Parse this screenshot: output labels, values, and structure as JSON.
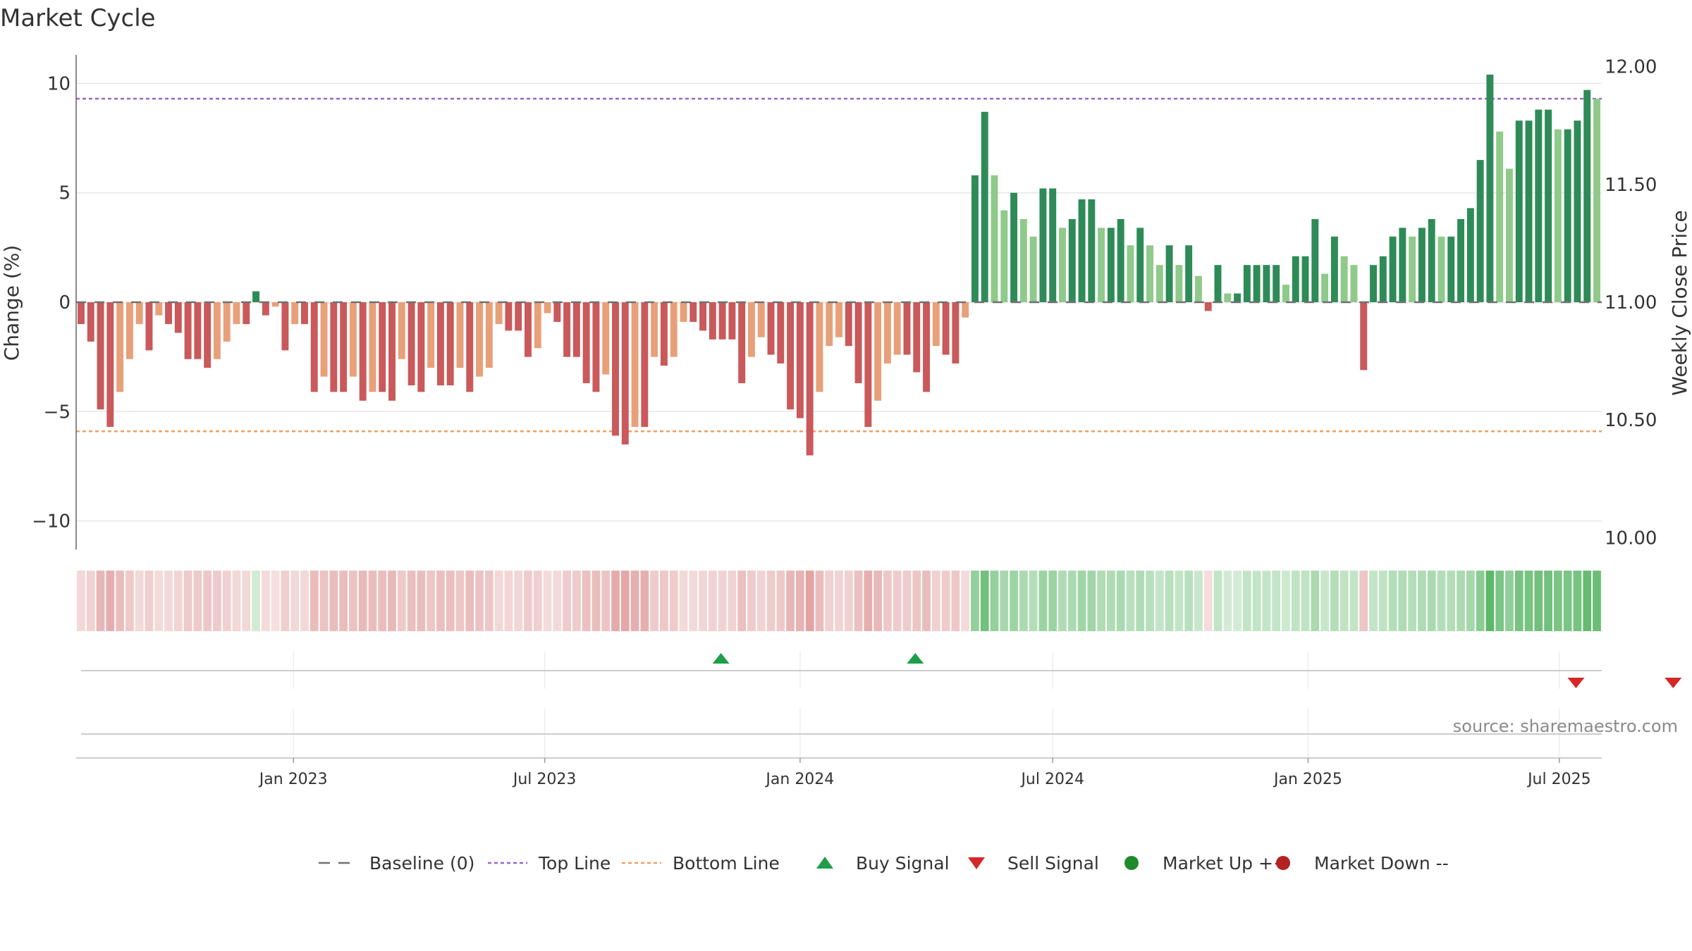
{
  "chart_data": {
    "type": "bar",
    "title": "Market Cycle",
    "ylabel": "Change (%)",
    "y2label": "Weekly Close Price",
    "ylim": [
      -11.3,
      11.3
    ],
    "y2lim": [
      9.95,
      12.05
    ],
    "y_ticks": [
      10,
      5,
      0,
      -5,
      -10
    ],
    "y_tick_labels": [
      "10",
      "5",
      "0",
      "−5",
      "−10"
    ],
    "y2_ticks": [
      12.0,
      11.5,
      11.0,
      10.5,
      10.0
    ],
    "y2_tick_labels": [
      "12.00",
      "11.50",
      "11.00",
      "10.50",
      "10.00"
    ],
    "x_start": "2022-08-01",
    "x_ticks": [
      {
        "date": "2023-01-01",
        "label": "Jan 2023"
      },
      {
        "date": "2023-07-01",
        "label": "Jul 2023"
      },
      {
        "date": "2024-01-01",
        "label": "Jan 2024"
      },
      {
        "date": "2024-07-01",
        "label": "Jul 2024"
      },
      {
        "date": "2025-01-01",
        "label": "Jan 2025"
      },
      {
        "date": "2025-07-01",
        "label": "Jul 2025"
      }
    ],
    "top_line": 9.3,
    "bottom_line": -5.9,
    "values": [
      -1.0,
      -1.8,
      -4.9,
      -5.7,
      -4.1,
      -2.6,
      -1.0,
      -2.2,
      -0.6,
      -1.0,
      -1.4,
      -2.6,
      -2.6,
      -3.0,
      -2.6,
      -1.8,
      -1.0,
      -1.0,
      0.5,
      -0.6,
      -0.2,
      -2.2,
      -1.0,
      -1.0,
      -4.1,
      -3.4,
      -4.1,
      -4.1,
      -3.4,
      -4.5,
      -4.1,
      -4.1,
      -4.5,
      -2.6,
      -3.8,
      -4.1,
      -3.0,
      -3.8,
      -3.8,
      -3.0,
      -4.1,
      -3.4,
      -3.0,
      -1.0,
      -1.3,
      -1.3,
      -2.5,
      -2.1,
      -0.5,
      -0.9,
      -2.5,
      -2.5,
      -3.7,
      -4.1,
      -3.3,
      -6.1,
      -6.5,
      -5.7,
      -5.7,
      -2.5,
      -2.9,
      -2.5,
      -0.9,
      -0.9,
      -1.3,
      -1.7,
      -1.7,
      -1.7,
      -3.7,
      -2.5,
      -1.6,
      -2.4,
      -2.8,
      -4.9,
      -5.3,
      -7.0,
      -4.1,
      -2.0,
      -1.6,
      -2.0,
      -3.7,
      -5.7,
      -4.5,
      -2.8,
      -2.4,
      -2.4,
      -3.2,
      -4.1,
      -2.0,
      -2.4,
      -2.8,
      -0.7,
      5.8,
      8.7,
      5.8,
      4.2,
      5.0,
      3.8,
      3.0,
      5.2,
      5.2,
      3.4,
      3.8,
      4.7,
      4.7,
      3.4,
      3.4,
      3.8,
      2.6,
      3.4,
      2.6,
      1.7,
      2.6,
      1.7,
      2.6,
      1.2,
      -0.4,
      1.7,
      0.4,
      0.4,
      1.7,
      1.7,
      1.7,
      1.7,
      0.8,
      2.1,
      2.1,
      3.8,
      1.3,
      3.0,
      2.1,
      1.7,
      -3.1,
      1.7,
      2.1,
      3.0,
      3.4,
      3.0,
      3.4,
      3.8,
      3.0,
      3.0,
      3.8,
      4.3,
      6.5,
      10.4,
      7.8,
      6.1,
      8.3,
      8.3,
      8.8,
      8.8,
      7.9,
      7.9,
      8.3,
      9.7,
      9.3
    ],
    "bar_colors": {
      "up_strong": "#2e8b57",
      "up_light": "#8fca8a",
      "down_strong": "#c9595a",
      "down_light": "#e8a07a"
    },
    "regime_colors": {
      "up": "#5fb86a",
      "down": "#d98686"
    },
    "buy_signals": [
      "2023-11-05",
      "2024-03-24"
    ],
    "sell_signals": [
      "2025-07-13",
      "2025-09-21"
    ],
    "legend": [
      {
        "label": "Baseline (0)",
        "kind": "dash",
        "color": "#707070"
      },
      {
        "label": "Top Line",
        "kind": "dotted",
        "color": "#9966cc"
      },
      {
        "label": "Bottom Line",
        "kind": "dotted",
        "color": "#f0a060"
      },
      {
        "label": "Buy Signal",
        "kind": "tri-up",
        "color": "#1e9e4a"
      },
      {
        "label": "Sell Signal",
        "kind": "tri-down",
        "color": "#d62728"
      },
      {
        "label": "Market Up ++",
        "kind": "dot",
        "color": "#1e8a2a"
      },
      {
        "label": "Market Down --",
        "kind": "dot",
        "color": "#b22222"
      }
    ],
    "source_text": "source: sharemaestro.com"
  }
}
